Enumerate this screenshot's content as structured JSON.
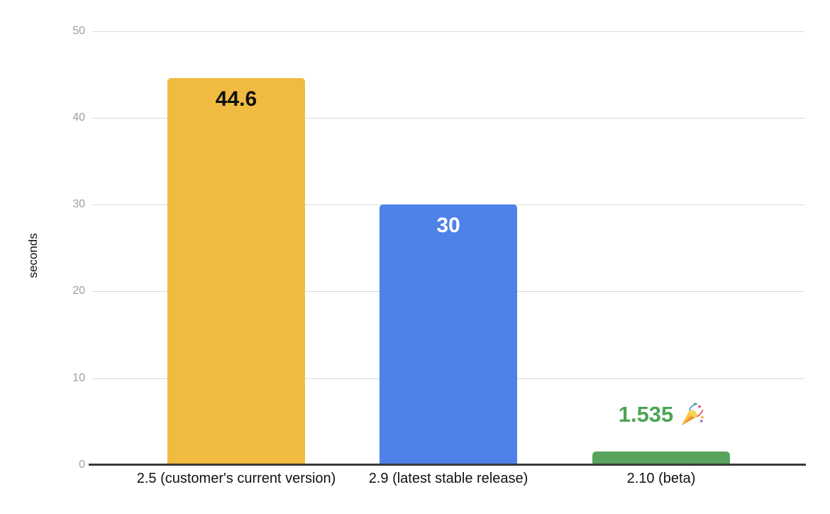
{
  "chart_data": {
    "type": "bar",
    "title": "",
    "xlabel": "",
    "ylabel": "seconds",
    "ylim": [
      0,
      50
    ],
    "yticks": [
      50,
      40,
      30,
      20,
      10,
      0
    ],
    "grid": true,
    "legend": "none",
    "background_color": "#ffffff",
    "categories": [
      "2.5 (customer's current version)",
      "2.9 (latest stable release)",
      "2.10 (beta)"
    ],
    "values": [
      44.6,
      30,
      1.535
    ],
    "series": [
      {
        "name": "seconds",
        "values": [
          44.6,
          30,
          1.535
        ]
      }
    ],
    "bars": [
      {
        "category": "2.5 (customer's current version)",
        "value": 44.6,
        "value_label": "44.6",
        "bar_color": "#f1bb41",
        "label_color": "#111111",
        "label_position": "inside-top",
        "icon": null
      },
      {
        "category": "2.9 (latest stable release)",
        "value": 30,
        "value_label": "30",
        "bar_color": "#4e82e9",
        "label_color": "#ffffff",
        "label_position": "inside-top",
        "icon": null
      },
      {
        "category": "2.10 (beta)",
        "value": 1.535,
        "value_label": "1.535",
        "bar_color": "#58a45c",
        "label_color": "#4da455",
        "label_position": "above",
        "icon": "party-popper-icon"
      }
    ],
    "axis_colors": {
      "tick_label": "#9e9e9e",
      "gridline": "#d9d9d9",
      "baseline": "#3a3a3a",
      "category_label": "#111111"
    }
  }
}
